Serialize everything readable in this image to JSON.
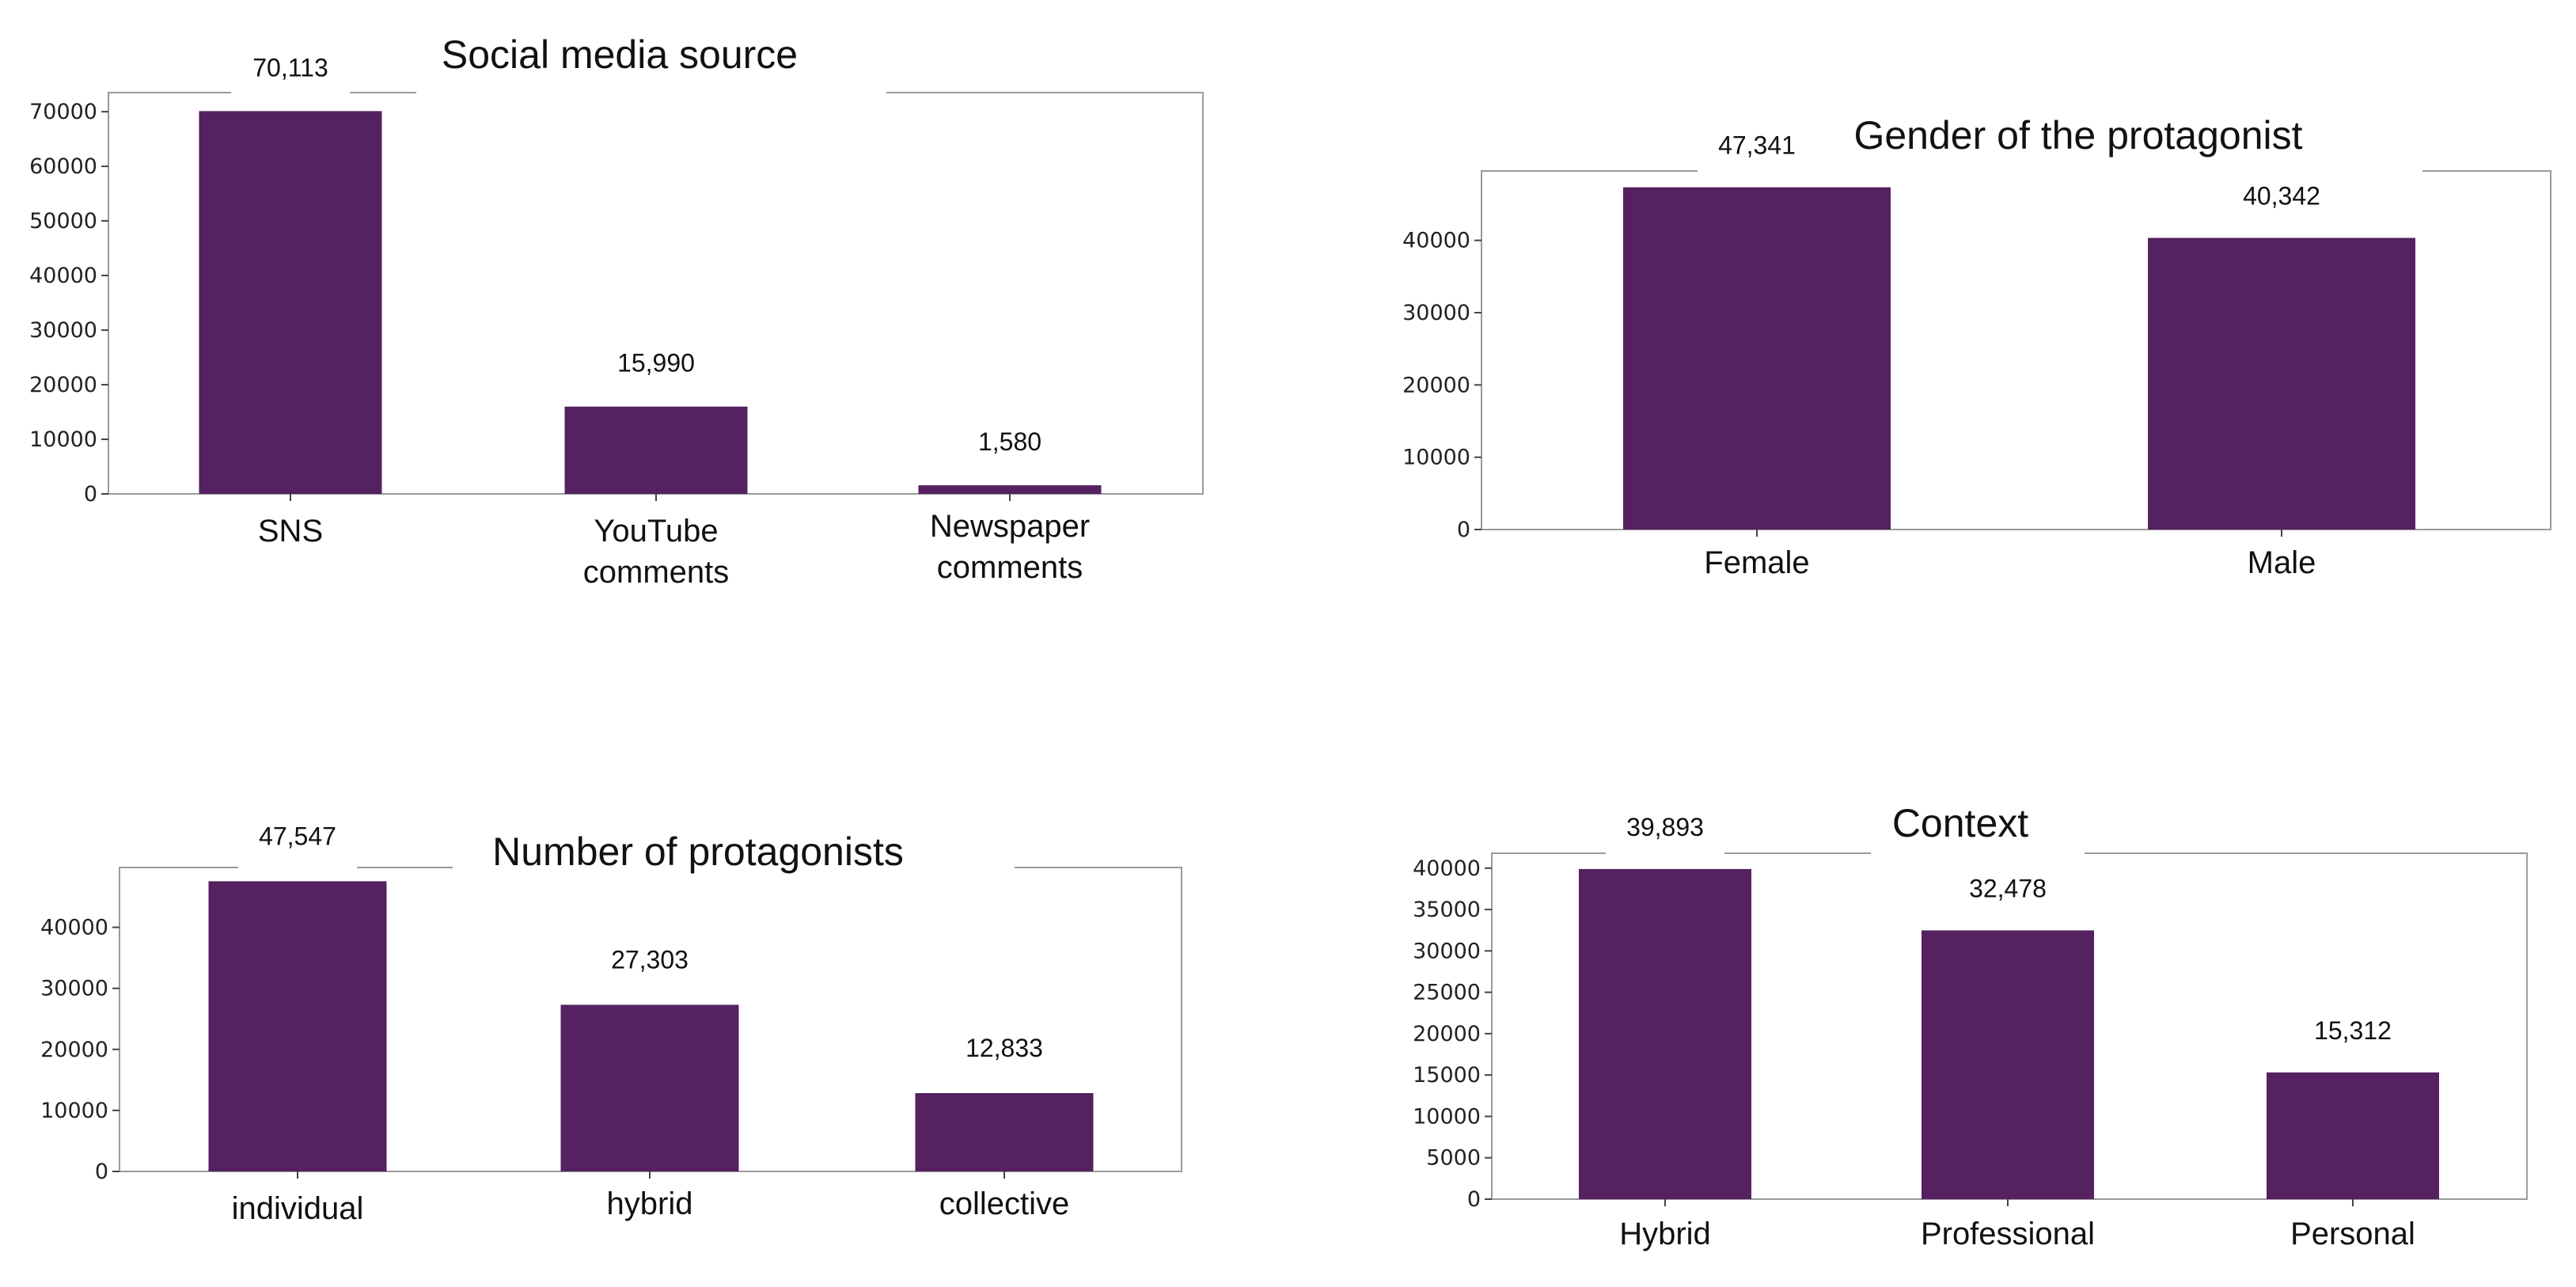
{
  "chart_data": [
    {
      "type": "bar",
      "title": "Social media source",
      "categories": [
        "SNS",
        "YouTube\ncomments",
        "Newspaper\ncomments"
      ],
      "values": [
        70113,
        15990,
        1580
      ],
      "value_labels": [
        "70,113",
        "15,990",
        "1,580"
      ],
      "yticks": [
        0,
        10000,
        20000,
        30000,
        40000,
        50000,
        60000,
        70000
      ],
      "ylim": [
        0,
        73500
      ],
      "bar_color": "#552160"
    },
    {
      "type": "bar",
      "title": "Gender of the protagonist",
      "categories": [
        "Female",
        "Male"
      ],
      "values": [
        47341,
        40342
      ],
      "value_labels": [
        "47,341",
        "40,342"
      ],
      "yticks": [
        0,
        10000,
        20000,
        30000,
        40000
      ],
      "ylim": [
        0,
        49600
      ],
      "bar_color": "#552160"
    },
    {
      "type": "bar",
      "title": "Number of protagonists",
      "categories": [
        "individual",
        "hybrid",
        "collective"
      ],
      "values": [
        47547,
        27303,
        12833
      ],
      "value_labels": [
        "47,547",
        "27,303",
        "12,833"
      ],
      "yticks": [
        0,
        10000,
        20000,
        30000,
        40000
      ],
      "ylim": [
        0,
        49800
      ],
      "bar_color": "#552160"
    },
    {
      "type": "bar",
      "title": "Context",
      "categories": [
        "Hybrid",
        "Professional",
        "Personal"
      ],
      "values": [
        39893,
        32478,
        15312
      ],
      "value_labels": [
        "39,893",
        "32,478",
        "15,312"
      ],
      "yticks": [
        0,
        5000,
        10000,
        15000,
        20000,
        25000,
        30000,
        35000,
        40000
      ],
      "ylim": [
        0,
        41800
      ],
      "bar_color": "#552160"
    }
  ]
}
